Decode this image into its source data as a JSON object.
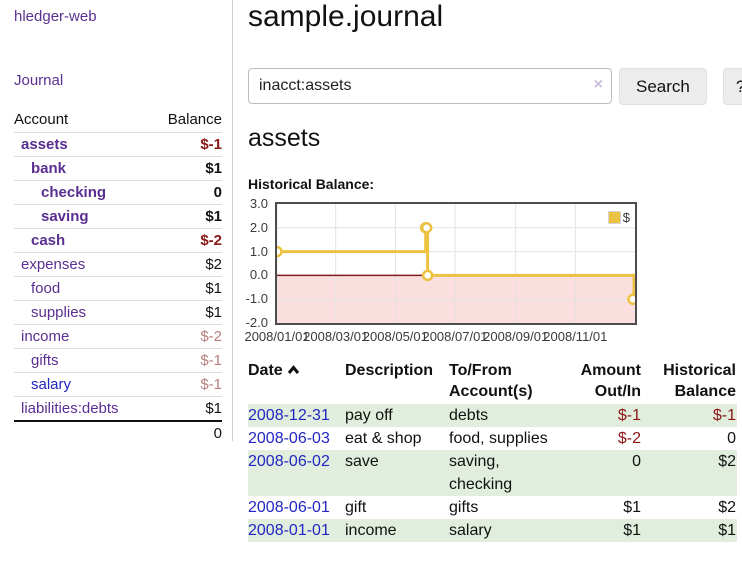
{
  "sidebar": {
    "app_title": "hledger-web",
    "journal_link": "Journal",
    "accounts_table": {
      "columns": [
        "Account",
        "Balance"
      ],
      "accounts": [
        {
          "name": "assets",
          "depth": 1,
          "emphasis": true,
          "balance": "$-1",
          "balance_tone": "negative-strong",
          "link_tone": "purple"
        },
        {
          "name": "bank",
          "depth": 2,
          "emphasis": true,
          "balance": "$1",
          "balance_tone": "normal",
          "link_tone": "purple"
        },
        {
          "name": "checking",
          "depth": 3,
          "emphasis": true,
          "balance": "0",
          "balance_tone": "normal",
          "link_tone": "purple"
        },
        {
          "name": "saving",
          "depth": 3,
          "emphasis": true,
          "balance": "$1",
          "balance_tone": "normal",
          "link_tone": "purple"
        },
        {
          "name": "cash",
          "depth": 2,
          "emphasis": true,
          "balance": "$-2",
          "balance_tone": "negative-strong",
          "link_tone": "purple"
        },
        {
          "name": "expenses",
          "depth": 1,
          "emphasis": false,
          "balance": "$2",
          "balance_tone": "normal",
          "link_tone": "purple"
        },
        {
          "name": "food",
          "depth": 2,
          "emphasis": false,
          "balance": "$1",
          "balance_tone": "normal",
          "link_tone": "purple"
        },
        {
          "name": "supplies",
          "depth": 2,
          "emphasis": false,
          "balance": "$1",
          "balance_tone": "normal",
          "link_tone": "purple"
        },
        {
          "name": "income",
          "depth": 1,
          "emphasis": false,
          "balance": "$-2",
          "balance_tone": "negative-soft",
          "link_tone": "purple"
        },
        {
          "name": "gifts",
          "depth": 2,
          "emphasis": false,
          "balance": "$-1",
          "balance_tone": "negative-soft",
          "link_tone": "purple"
        },
        {
          "name": "salary",
          "depth": 2,
          "emphasis": false,
          "balance": "$-1",
          "balance_tone": "negative-soft",
          "link_tone": "blue"
        },
        {
          "name": "liabilities:debts",
          "depth": 1,
          "emphasis": false,
          "balance": "$1",
          "balance_tone": "normal",
          "link_tone": "purple"
        }
      ],
      "total": "0"
    }
  },
  "main": {
    "title": "sample.journal",
    "search": {
      "value": "inacct:assets",
      "clear_icon": "×",
      "button": "Search",
      "help_button": "?"
    },
    "account_heading": "assets"
  },
  "chart_data": {
    "type": "line",
    "step": true,
    "title": "Historical Balance:",
    "series": [
      {
        "name": "$",
        "color": "#EDC240",
        "points": [
          [
            "2008-01-01",
            1
          ],
          [
            "2008-06-01",
            2
          ],
          [
            "2008-06-02",
            2
          ],
          [
            "2008-06-03",
            0
          ],
          [
            "2008-12-31",
            -1
          ]
        ]
      }
    ],
    "xrange": [
      "2008-01-01",
      "2009-01-01"
    ],
    "ylim": [
      -2,
      3
    ],
    "yticks": [
      3,
      2,
      1,
      0,
      -1,
      -2
    ],
    "ytick_labels": [
      "3.0",
      "2.0",
      "1.0",
      "0.0",
      "-1.0",
      "-2.0"
    ],
    "xtick_labels": [
      "2008/01/01",
      "2008/03/01",
      "2008/05/01",
      "2008/07/01",
      "2008/09/01",
      "2008/11/01"
    ],
    "legend_position": "top-right",
    "grid": true,
    "negative_region_color": "#fbdede",
    "zero_line_color": "#7d1a1a"
  },
  "register": {
    "columns": [
      {
        "label": "Date",
        "sort_indicator": "asc"
      },
      {
        "label": "Description"
      },
      {
        "label": "To/From Account(s)"
      },
      {
        "label": "Amount Out/In"
      },
      {
        "label": "Historical Balance"
      }
    ],
    "rows": [
      {
        "date": "2008-12-31",
        "description": "pay off",
        "accounts": "debts",
        "amount": "$-1",
        "amount_tone": "negative",
        "balance": "$-1",
        "balance_tone": "negative"
      },
      {
        "date": "2008-06-03",
        "description": "eat & shop",
        "accounts": "food, supplies",
        "amount": "$-2",
        "amount_tone": "negative",
        "balance": "0",
        "balance_tone": "normal"
      },
      {
        "date": "2008-06-02",
        "description": "save",
        "accounts": "saving, checking",
        "amount": "0",
        "amount_tone": "normal",
        "balance": "$2",
        "balance_tone": "normal"
      },
      {
        "date": "2008-06-01",
        "description": "gift",
        "accounts": "gifts",
        "amount": "$1",
        "amount_tone": "normal",
        "balance": "$2",
        "balance_tone": "normal"
      },
      {
        "date": "2008-01-01",
        "description": "income",
        "accounts": "salary",
        "amount": "$1",
        "amount_tone": "normal",
        "balance": "$1",
        "balance_tone": "normal"
      }
    ]
  }
}
